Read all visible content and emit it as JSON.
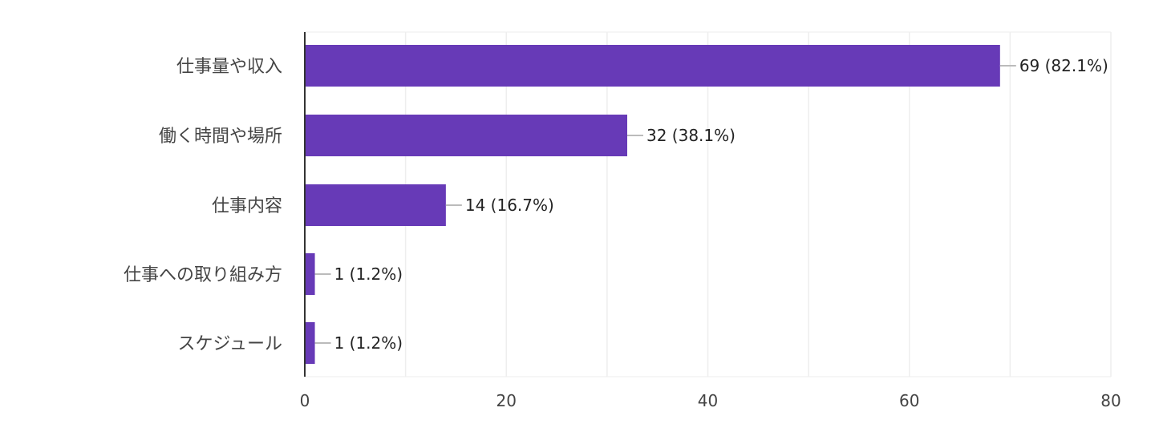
{
  "chart_data": {
    "type": "bar",
    "orientation": "horizontal",
    "categories": [
      "仕事量や収入",
      "働く時間や場所",
      "仕事内容",
      "仕事への取り組み方",
      "スケジュール"
    ],
    "values": [
      69,
      32,
      14,
      1,
      1
    ],
    "data_labels": [
      "69 (82.1%)",
      "32 (38.1%)",
      "14 (16.7%)",
      "1 (1.2%)",
      "1 (1.2%)"
    ],
    "xlim": [
      0,
      80
    ],
    "xticks": [
      0,
      20,
      40,
      60,
      80
    ],
    "grid": true,
    "bar_color": "#673ab7",
    "grid_color": "#eeeeee",
    "axis_color": "#333333",
    "leader_color": "#bbbbbb",
    "title": "",
    "xlabel": "",
    "ylabel": ""
  }
}
